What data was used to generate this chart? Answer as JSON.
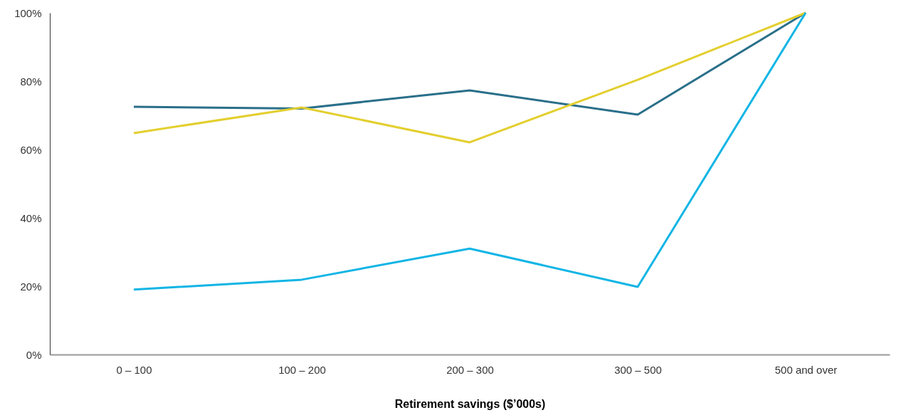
{
  "chart_data": {
    "type": "line",
    "xlabel": "Retirement savings ($’000s)",
    "categories": [
      "0 – 100",
      "100 – 200",
      "200 – 300",
      "300 – 500",
      "500 and over"
    ],
    "series": [
      {
        "color": "#2a6f8a",
        "values": [
          72.5,
          72,
          77.3,
          70.2,
          100
        ]
      },
      {
        "color": "#e3cf2f",
        "values": [
          64.8,
          72.3,
          62.1,
          80.4,
          100
        ]
      },
      {
        "color": "#12b5e5",
        "values": [
          19,
          21.9,
          31,
          19.8,
          100
        ]
      }
    ],
    "ylim": [
      0,
      100
    ],
    "yticks": [
      {
        "value": 0,
        "label": "0%"
      },
      {
        "value": 20,
        "label": "20%"
      },
      {
        "value": 40,
        "label": "40%"
      },
      {
        "value": 60,
        "label": "60%"
      },
      {
        "value": 80,
        "label": "80%"
      },
      {
        "value": 100,
        "label": "100%"
      }
    ],
    "grid": false,
    "marker": "none",
    "line_style": "solid"
  }
}
